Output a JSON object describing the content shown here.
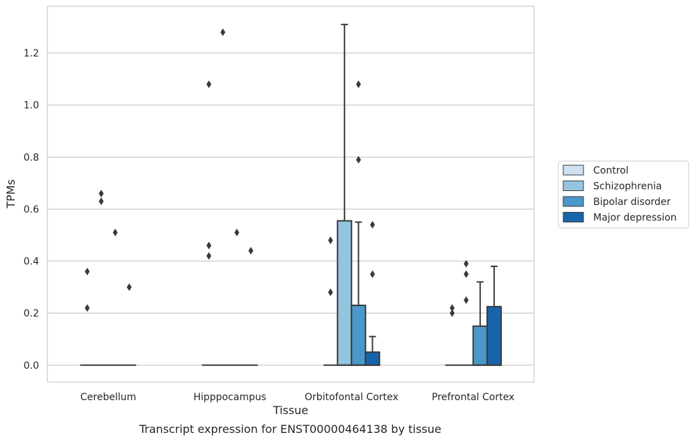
{
  "chart_data": {
    "type": "box",
    "xlabel": "Tissue",
    "ylabel": "TPMs",
    "caption": "Transcript expression for ENST00000464138 by tissue",
    "categories": [
      "Cerebellum",
      "Hipppocampus",
      "Orbitofontal Cortex",
      "Prefrontal Cortex"
    ],
    "ylim": [
      -0.065,
      1.38
    ],
    "yticks": [
      0.0,
      0.2,
      0.4,
      0.6,
      0.8,
      1.0,
      1.2
    ],
    "ytick_labels": [
      "0.0",
      "0.2",
      "0.4",
      "0.6",
      "0.8",
      "1.0",
      "1.2"
    ],
    "grid": true,
    "legend_position": "right",
    "series": [
      {
        "name": "Control",
        "color": "#d0e1f2",
        "boxes": [
          {
            "q1": 0,
            "median": 0,
            "q3": 0,
            "whisker_low": 0,
            "whisker_high": 0,
            "outliers": [
              0.36,
              0.22
            ]
          },
          {
            "q1": 0,
            "median": 0,
            "q3": 0,
            "whisker_low": 0,
            "whisker_high": 0,
            "outliers": [
              1.08,
              0.46,
              0.42
            ]
          },
          {
            "q1": 0,
            "median": 0,
            "q3": 0,
            "whisker_low": 0,
            "whisker_high": 0,
            "outliers": [
              0.48,
              0.28
            ]
          },
          {
            "q1": 0,
            "median": 0,
            "q3": 0,
            "whisker_low": 0,
            "whisker_high": 0,
            "outliers": [
              0.22,
              0.2
            ]
          }
        ]
      },
      {
        "name": "Schizophrenia",
        "color": "#94c4df",
        "boxes": [
          {
            "q1": 0,
            "median": 0,
            "q3": 0,
            "whisker_low": 0,
            "whisker_high": 0,
            "outliers": [
              0.66,
              0.63
            ]
          },
          {
            "q1": 0,
            "median": 0,
            "q3": 0,
            "whisker_low": 0,
            "whisker_high": 0,
            "outliers": [
              1.28
            ]
          },
          {
            "q1": 0,
            "median": 0,
            "q3": 0.555,
            "whisker_low": 0,
            "whisker_high": 1.31,
            "outliers": []
          },
          {
            "q1": 0,
            "median": 0,
            "q3": 0,
            "whisker_low": 0,
            "whisker_high": 0,
            "outliers": [
              0.39,
              0.35,
              0.25
            ]
          }
        ]
      },
      {
        "name": "Bipolar disorder",
        "color": "#4a98c9",
        "boxes": [
          {
            "q1": 0,
            "median": 0,
            "q3": 0,
            "whisker_low": 0,
            "whisker_high": 0,
            "outliers": [
              0.51
            ]
          },
          {
            "q1": 0,
            "median": 0,
            "q3": 0,
            "whisker_low": 0,
            "whisker_high": 0,
            "outliers": [
              0.51
            ]
          },
          {
            "q1": 0,
            "median": 0,
            "q3": 0.23,
            "whisker_low": 0,
            "whisker_high": 0.55,
            "outliers": [
              1.08,
              0.79
            ]
          },
          {
            "q1": 0,
            "median": 0,
            "q3": 0.15,
            "whisker_low": 0,
            "whisker_high": 0.32,
            "outliers": []
          }
        ]
      },
      {
        "name": "Major depression",
        "color": "#1764ab",
        "boxes": [
          {
            "q1": 0,
            "median": 0,
            "q3": 0,
            "whisker_low": 0,
            "whisker_high": 0,
            "outliers": [
              0.3
            ]
          },
          {
            "q1": 0,
            "median": 0,
            "q3": 0,
            "whisker_low": 0,
            "whisker_high": 0,
            "outliers": [
              0.44
            ]
          },
          {
            "q1": 0,
            "median": 0,
            "q3": 0.05,
            "whisker_low": 0,
            "whisker_high": 0.11,
            "outliers": [
              0.54,
              0.35
            ]
          },
          {
            "q1": 0,
            "median": 0,
            "q3": 0.225,
            "whisker_low": 0,
            "whisker_high": 0.38,
            "outliers": []
          }
        ]
      }
    ]
  }
}
